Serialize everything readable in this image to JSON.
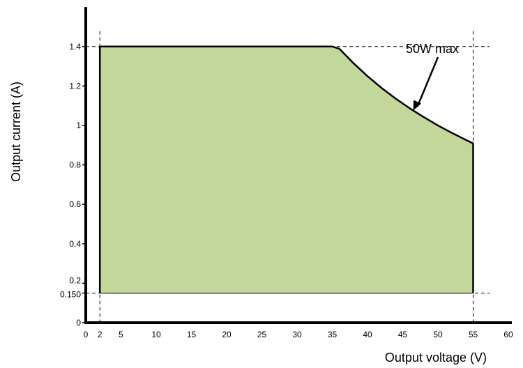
{
  "chart_data": {
    "type": "area",
    "xlabel": "Output voltage (V)",
    "ylabel": "Output current (A)",
    "xlim": [
      0,
      60
    ],
    "ylim": [
      0,
      1.5
    ],
    "x_ticks": [
      {
        "value": 0,
        "label": "0"
      },
      {
        "value": 2,
        "label": "2"
      },
      {
        "value": 5,
        "label": "5"
      },
      {
        "value": 10,
        "label": "10"
      },
      {
        "value": 15,
        "label": "15"
      },
      {
        "value": 20,
        "label": "20"
      },
      {
        "value": 25,
        "label": "25"
      },
      {
        "value": 30,
        "label": "30"
      },
      {
        "value": 35,
        "label": "35"
      },
      {
        "value": 40,
        "label": "40"
      },
      {
        "value": 45,
        "label": "45"
      },
      {
        "value": 50,
        "label": "50"
      },
      {
        "value": 55,
        "label": "55"
      },
      {
        "value": 60,
        "label": "60"
      }
    ],
    "y_ticks": [
      {
        "value": 0,
        "label": "0"
      },
      {
        "value": 0.15,
        "label": "0.150"
      },
      {
        "value": 0.2,
        "label": "0.2"
      },
      {
        "value": 0.4,
        "label": "0.4"
      },
      {
        "value": 0.6,
        "label": "0.6"
      },
      {
        "value": 0.8,
        "label": "0.8"
      },
      {
        "value": 1.0,
        "label": "1"
      },
      {
        "value": 1.2,
        "label": "1.2"
      },
      {
        "value": 1.4,
        "label": "1.4"
      }
    ],
    "boundary": {
      "x": [
        2,
        2,
        35,
        36,
        38,
        40,
        42,
        44,
        46,
        48,
        50,
        52,
        54,
        55,
        55
      ],
      "y": [
        0.15,
        1.4,
        1.4,
        1.389,
        1.316,
        1.25,
        1.19,
        1.136,
        1.087,
        1.042,
        1.0,
        0.962,
        0.926,
        0.909,
        0.15
      ]
    },
    "reference_lines": {
      "vertical": [
        2,
        55
      ],
      "horizontal": [
        1.4,
        0.15
      ]
    },
    "annotation": {
      "text": "50W max",
      "points_to": {
        "x": 46.5,
        "y": 1.075
      }
    },
    "colors": {
      "fill": "#c4d79b",
      "line": "#000000"
    },
    "grid": false,
    "legend": "none"
  }
}
